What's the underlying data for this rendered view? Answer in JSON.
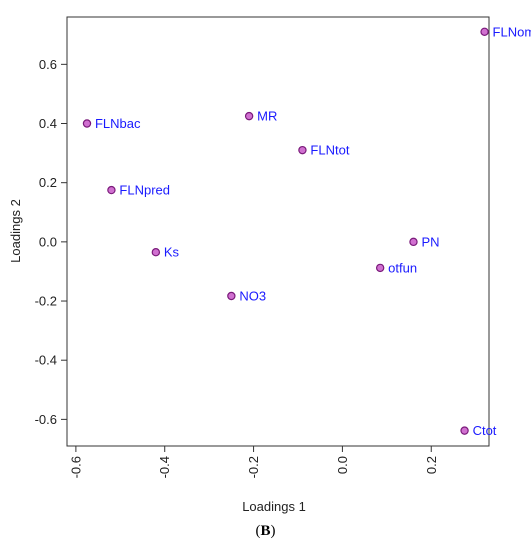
{
  "panel_label": {
    "open": "(",
    "letter": "B",
    "close": ")"
  },
  "chart_data": {
    "type": "scatter",
    "xlabel": "Loadings 1",
    "ylabel": "Loadings 2",
    "xlim": [
      -0.62,
      0.33
    ],
    "ylim": [
      -0.69,
      0.76
    ],
    "xticks": [
      -0.6,
      -0.4,
      -0.2,
      0.0,
      0.2
    ],
    "xtick_labels": [
      "-0.6",
      "-0.4",
      "-0.2",
      "0.0",
      "0.2"
    ],
    "yticks": [
      -0.6,
      -0.4,
      -0.2,
      0.0,
      0.2,
      0.4,
      0.6
    ],
    "ytick_labels": [
      "-0.6",
      "-0.4",
      "-0.2",
      "0.0",
      "0.2",
      "0.4",
      "0.6"
    ],
    "x_tick_label_rotation": "vertical",
    "grid": false,
    "marker_color": "#d070d0",
    "marker_edge": "#7a1a7a",
    "label_color": "#1a1aff",
    "points": [
      {
        "label": "FLNom",
        "x": 0.32,
        "y": 0.71
      },
      {
        "label": "FLNbac",
        "x": -0.575,
        "y": 0.4
      },
      {
        "label": "MR",
        "x": -0.21,
        "y": 0.425
      },
      {
        "label": "FLNtot",
        "x": -0.09,
        "y": 0.31
      },
      {
        "label": "FLNpred",
        "x": -0.52,
        "y": 0.175
      },
      {
        "label": "PN",
        "x": 0.16,
        "y": 0.0
      },
      {
        "label": "Ks",
        "x": -0.42,
        "y": -0.035
      },
      {
        "label": "otfun",
        "x": 0.085,
        "y": -0.088
      },
      {
        "label": "NO3",
        "x": -0.25,
        "y": -0.183
      },
      {
        "label": "Ctot",
        "x": 0.275,
        "y": -0.638
      }
    ]
  }
}
